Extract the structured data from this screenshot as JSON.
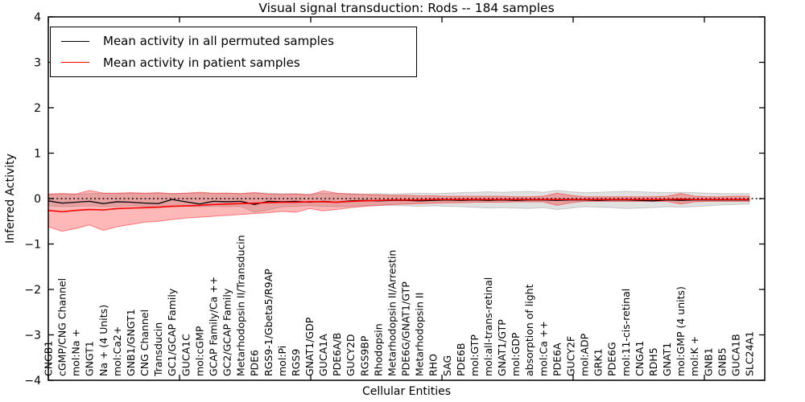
{
  "figure": {
    "title": "Visual signal transduction: Rods -- 184 samples",
    "xlabel": "Cellular Entities",
    "ylabel": "Inferred Activity"
  },
  "colors": {
    "permuted_line": "#000000",
    "patient_line": "#ff0000",
    "permuted_band": "rgba(0,0,0,0.12)",
    "patient_band": "rgba(255,0,0,0.28)"
  },
  "chart_data": {
    "type": "line",
    "title": "Visual signal transduction: Rods -- 184 samples",
    "xlabel": "Cellular Entities",
    "ylabel": "Inferred Activity",
    "ylim": [
      -4,
      4
    ],
    "yticks": [
      4,
      3,
      2,
      1,
      0,
      -1,
      -2,
      -3,
      -4
    ],
    "grid": false,
    "legend_position": "upper left",
    "zero_line_style": "dotted",
    "categories": [
      "CNGB1",
      "cGMP/CNG Channel",
      "mol:Na +",
      "GNGT1",
      "Na + (4 Units)",
      "mol:Ca2+",
      "GNB1/GNGT1",
      "CNG Channel",
      "Transducin",
      "GC1/GCAP Family",
      "GUCA1C",
      "mol:cGMP",
      "GCAP Family/Ca ++",
      "GC2/GCAP Family",
      "Metarhodopsin II/Transducin",
      "PDE6",
      "RGS9-1/Gbeta5/R9AP",
      "mol:Pi",
      "RGS9",
      "GNAT1/GDP",
      "GUCA1A",
      "PDE6A/B",
      "GUCY2D",
      "RGS9BP",
      "Rhodopsin",
      "Metarhodopsin II/Arrestin",
      "PDE6G/GNAT1/GTP",
      "Metarhodopsin II",
      "RHO",
      "SAG",
      "PDE6B",
      "mol:GTP",
      "mol:all-trans-retinal",
      "GNAT1/GTP",
      "mol:GDP",
      "absorption of light",
      "mol:Ca ++",
      "PDE6A",
      "GUCY2F",
      "mol:ADP",
      "GRK1",
      "PDE6G",
      "mol:11-cis-retinal",
      "CNGA1",
      "RDH5",
      "GNAT1",
      "mol:GMP (4 units)",
      "mol:K +",
      "GNB1",
      "GNB5",
      "GUCA1B",
      "SLC24A1"
    ],
    "series": [
      {
        "name": "Mean activity in all permuted samples",
        "color": "#000000",
        "values": [
          -0.05,
          -0.1,
          -0.08,
          -0.06,
          -0.11,
          -0.07,
          -0.08,
          -0.1,
          -0.11,
          -0.02,
          -0.07,
          -0.12,
          -0.06,
          -0.07,
          -0.06,
          -0.13,
          -0.06,
          -0.07,
          -0.06,
          -0.08,
          -0.06,
          -0.08,
          -0.05,
          -0.04,
          -0.05,
          -0.04,
          -0.04,
          -0.05,
          -0.04,
          -0.03,
          -0.04,
          -0.03,
          -0.04,
          -0.03,
          -0.04,
          -0.03,
          -0.03,
          -0.04,
          -0.03,
          -0.03,
          -0.04,
          -0.03,
          -0.03,
          -0.04,
          -0.05,
          -0.03,
          -0.04,
          -0.03,
          -0.03,
          -0.03,
          -0.03,
          -0.03
        ]
      },
      {
        "name": "Mean activity in patient samples",
        "color": "#ff0000",
        "values": [
          -0.26,
          -0.29,
          -0.26,
          -0.24,
          -0.25,
          -0.22,
          -0.21,
          -0.2,
          -0.19,
          -0.17,
          -0.16,
          -0.15,
          -0.13,
          -0.12,
          -0.11,
          -0.1,
          -0.09,
          -0.08,
          -0.08,
          -0.07,
          -0.07,
          -0.08,
          -0.06,
          -0.05,
          -0.04,
          -0.03,
          -0.03,
          -0.03,
          -0.02,
          -0.02,
          -0.02,
          -0.02,
          -0.02,
          -0.02,
          -0.02,
          -0.02,
          -0.02,
          -0.02,
          -0.02,
          -0.02,
          -0.02,
          -0.02,
          -0.02,
          -0.02,
          -0.02,
          -0.02,
          -0.01,
          -0.02,
          -0.02,
          -0.02,
          -0.02,
          -0.02
        ]
      }
    ],
    "bands": [
      {
        "name": "permuted samples range",
        "color": "#000000",
        "fill_opacity": 0.12,
        "edge_opacity": 0.16,
        "upper": [
          0.1,
          0.11,
          0.1,
          0.11,
          0.12,
          0.11,
          0.12,
          0.11,
          0.12,
          0.11,
          0.12,
          0.12,
          0.11,
          0.12,
          0.11,
          0.13,
          0.12,
          0.11,
          0.11,
          0.1,
          0.12,
          0.11,
          0.11,
          0.1,
          0.11,
          0.1,
          0.11,
          0.12,
          0.11,
          0.12,
          0.13,
          0.14,
          0.15,
          0.14,
          0.15,
          0.16,
          0.14,
          0.18,
          0.15,
          0.13,
          0.14,
          0.15,
          0.16,
          0.15,
          0.14,
          0.13,
          0.14,
          0.13,
          0.12,
          0.11,
          0.11,
          0.11
        ],
        "lower": [
          -0.16,
          -0.18,
          -0.17,
          -0.16,
          -0.18,
          -0.17,
          -0.16,
          -0.17,
          -0.18,
          -0.16,
          -0.17,
          -0.18,
          -0.17,
          -0.18,
          -0.17,
          -0.3,
          -0.25,
          -0.18,
          -0.17,
          -0.16,
          -0.17,
          -0.18,
          -0.17,
          -0.16,
          -0.15,
          -0.15,
          -0.16,
          -0.17,
          -0.16,
          -0.17,
          -0.18,
          -0.19,
          -0.21,
          -0.2,
          -0.21,
          -0.22,
          -0.2,
          -0.24,
          -0.21,
          -0.18,
          -0.19,
          -0.2,
          -0.22,
          -0.21,
          -0.2,
          -0.18,
          -0.19,
          -0.18,
          -0.16,
          -0.14,
          -0.13,
          -0.12
        ]
      },
      {
        "name": "patient samples range",
        "color": "#ff0000",
        "fill_opacity": 0.28,
        "edge_opacity": 0.45,
        "upper": [
          0.1,
          0.11,
          0.1,
          0.18,
          0.12,
          0.12,
          0.13,
          0.12,
          0.13,
          0.11,
          0.12,
          0.14,
          0.12,
          0.12,
          0.11,
          0.13,
          0.1,
          0.09,
          0.1,
          0.08,
          0.17,
          0.12,
          0.1,
          0.09,
          0.08,
          0.07,
          0.07,
          0.06,
          0.06,
          0.05,
          0.05,
          0.05,
          0.05,
          0.05,
          0.04,
          0.04,
          0.05,
          0.12,
          0.07,
          0.04,
          0.04,
          0.04,
          0.04,
          0.04,
          0.04,
          0.05,
          0.11,
          0.05,
          0.04,
          0.04,
          0.05,
          0.05
        ],
        "lower": [
          -0.62,
          -0.72,
          -0.66,
          -0.58,
          -0.7,
          -0.62,
          -0.57,
          -0.52,
          -0.5,
          -0.46,
          -0.43,
          -0.41,
          -0.39,
          -0.37,
          -0.35,
          -0.33,
          -0.31,
          -0.28,
          -0.3,
          -0.22,
          -0.27,
          -0.24,
          -0.2,
          -0.17,
          -0.15,
          -0.13,
          -0.12,
          -0.11,
          -0.1,
          -0.09,
          -0.09,
          -0.08,
          -0.08,
          -0.08,
          -0.07,
          -0.07,
          -0.07,
          -0.15,
          -0.09,
          -0.06,
          -0.06,
          -0.06,
          -0.06,
          -0.06,
          -0.06,
          -0.06,
          -0.12,
          -0.07,
          -0.06,
          -0.06,
          -0.06,
          -0.06
        ]
      }
    ]
  }
}
